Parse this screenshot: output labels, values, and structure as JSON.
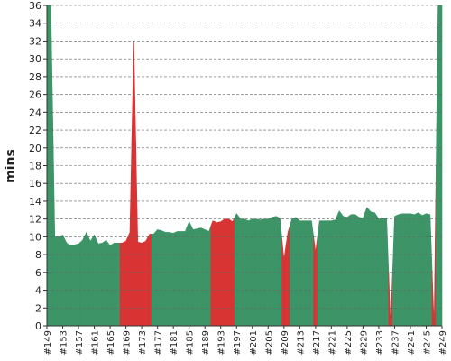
{
  "chart_data": {
    "type": "area",
    "y_label": "mins",
    "categories": [
      "#149",
      null,
      null,
      null,
      "#153",
      null,
      null,
      null,
      "#157",
      null,
      null,
      null,
      "#161",
      null,
      null,
      null,
      "#165",
      null,
      null,
      null,
      "#169",
      null,
      null,
      null,
      "#173",
      null,
      null,
      null,
      "#177",
      null,
      null,
      null,
      "#181",
      null,
      null,
      null,
      "#185",
      null,
      null,
      null,
      "#189",
      null,
      null,
      null,
      "#193",
      null,
      null,
      null,
      "#197",
      null,
      null,
      null,
      "#201",
      null,
      null,
      null,
      "#205",
      null,
      null,
      null,
      "#209",
      null,
      null,
      null,
      "#213",
      null,
      null,
      null,
      "#217",
      null,
      null,
      null,
      "#221",
      null,
      null,
      null,
      "#225",
      null,
      null,
      null,
      "#229",
      null,
      null,
      null,
      "#233",
      null,
      null,
      null,
      "#237",
      null,
      null,
      null,
      "#241",
      null,
      null,
      null,
      "#245",
      null,
      null,
      null,
      "#249"
    ],
    "values": [
      36,
      36,
      10,
      10,
      10.2,
      9.3,
      9,
      9.1,
      9.2,
      9.6,
      10.5,
      9.5,
      10.2,
      9.2,
      9.3,
      9.6,
      9,
      9.3,
      9.3,
      9.3,
      9.5,
      10.5,
      32,
      9.4,
      9.3,
      9.5,
      10.3,
      10.3,
      10.8,
      10.7,
      10.5,
      10.5,
      10.4,
      10.6,
      10.6,
      10.6,
      11.7,
      10.8,
      10.9,
      11,
      10.8,
      10.6,
      11.8,
      11.6,
      11.7,
      12,
      12,
      11.7,
      12.6,
      12,
      12,
      11.8,
      12,
      12,
      11.9,
      12,
      12,
      12.2,
      12.3,
      12.1,
      7.5,
      10.5,
      12,
      12.2,
      11.8,
      11.8,
      11.8,
      11.8,
      8.3,
      11.8,
      11.8,
      11.8,
      11.8,
      11.9,
      12.9,
      12.3,
      12.2,
      12.5,
      12.5,
      12.2,
      12.1,
      13.3,
      12.8,
      12.7,
      12,
      12.1,
      12.1,
      0,
      12.3,
      12.5,
      12.6,
      12.6,
      12.6,
      12.5,
      12.7,
      12.4,
      12.6,
      12.5,
      0,
      36,
      36
    ],
    "colors": [
      "#3d9467",
      "#3d9467",
      "#3d9467",
      "#3d9467",
      "#3d9467",
      "#3d9467",
      "#3d9467",
      "#3d9467",
      "#3d9467",
      "#3d9467",
      "#3d9467",
      "#3d9467",
      "#3d9467",
      "#3d9467",
      "#3d9467",
      "#3d9467",
      "#3d9467",
      "#3d9467",
      "#3d9467",
      "#d93434",
      "#d93434",
      "#d93434",
      "#d93434",
      "#d93434",
      "#d93434",
      "#d93434",
      "#d93434",
      "#3d9467",
      "#3d9467",
      "#3d9467",
      "#3d9467",
      "#3d9467",
      "#3d9467",
      "#3d9467",
      "#3d9467",
      "#3d9467",
      "#3d9467",
      "#3d9467",
      "#3d9467",
      "#3d9467",
      "#3d9467",
      "#3d9467",
      "#d93434",
      "#d93434",
      "#d93434",
      "#d93434",
      "#d93434",
      "#d93434",
      "#3d9467",
      "#3d9467",
      "#3d9467",
      "#3d9467",
      "#3d9467",
      "#3d9467",
      "#3d9467",
      "#3d9467",
      "#3d9467",
      "#3d9467",
      "#3d9467",
      "#3d9467",
      "#d93434",
      "#d93434",
      "#3d9467",
      "#3d9467",
      "#3d9467",
      "#3d9467",
      "#3d9467",
      "#3d9467",
      "#d93434",
      "#3d9467",
      "#3d9467",
      "#3d9467",
      "#3d9467",
      "#3d9467",
      "#3d9467",
      "#3d9467",
      "#3d9467",
      "#3d9467",
      "#3d9467",
      "#3d9467",
      "#3d9467",
      "#3d9467",
      "#3d9467",
      "#3d9467",
      "#3d9467",
      "#3d9467",
      "#3d9467",
      "#d93434",
      "#3d9467",
      "#3d9467",
      "#3d9467",
      "#3d9467",
      "#3d9467",
      "#3d9467",
      "#3d9467",
      "#3d9467",
      "#3d9467",
      "#3d9467",
      "#d93434",
      "#3d9467",
      "#3d9467"
    ],
    "ylim": [
      0,
      36
    ],
    "yticks": [
      0,
      2,
      4,
      6,
      8,
      10,
      12,
      14,
      16,
      18,
      20,
      22,
      24,
      26,
      28,
      30,
      32,
      34,
      36
    ],
    "grid": true
  }
}
